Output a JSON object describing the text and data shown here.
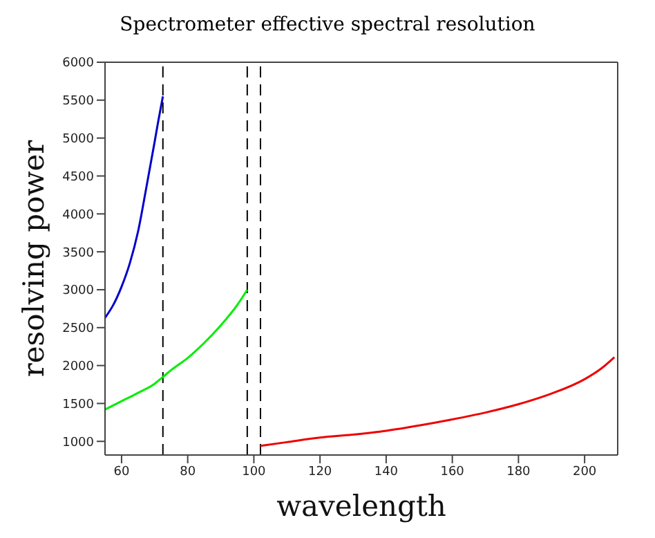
{
  "chart_data": {
    "type": "line",
    "title": "Spectrometer effective spectral resolution",
    "xlabel": "wavelength",
    "ylabel": "resolving power",
    "xlim": [
      55,
      210
    ],
    "xticks": [
      60,
      80,
      100,
      120,
      140,
      160,
      180,
      200
    ],
    "ylim": [
      820,
      6000
    ],
    "yticks": [
      1000,
      1500,
      2000,
      2500,
      3000,
      3500,
      4000,
      4500,
      5000,
      5500,
      6000
    ],
    "series": [
      {
        "color": "#0000cc",
        "x": [
          55,
          57.5,
          60,
          62.5,
          65,
          67.5,
          70,
          71,
          72.5
        ],
        "values": [
          2630,
          2800,
          3040,
          3350,
          3770,
          4350,
          4950,
          5200,
          5550
        ]
      },
      {
        "color": "#00ee00",
        "x": [
          55,
          60,
          65,
          70,
          72.5,
          75,
          80,
          85,
          90,
          95,
          98
        ],
        "values": [
          1420,
          1530,
          1640,
          1760,
          1850,
          1940,
          2100,
          2300,
          2530,
          2800,
          3000
        ]
      },
      {
        "color": "#ee0000",
        "x": [
          102,
          110,
          120,
          130,
          140,
          150,
          160,
          170,
          180,
          190,
          200,
          205,
          209
        ],
        "values": [
          940,
          990,
          1050,
          1090,
          1140,
          1210,
          1290,
          1380,
          1490,
          1630,
          1820,
          1960,
          2110
        ]
      }
    ],
    "ref_lines": [
      {
        "axis": "x",
        "value": 72.5,
        "color": "#000000",
        "line_style": "dashed"
      },
      {
        "axis": "x",
        "value": 98,
        "color": "#000000",
        "line_style": "dashed"
      },
      {
        "axis": "x",
        "value": 102,
        "color": "#000000",
        "line_style": "dashed"
      }
    ]
  }
}
